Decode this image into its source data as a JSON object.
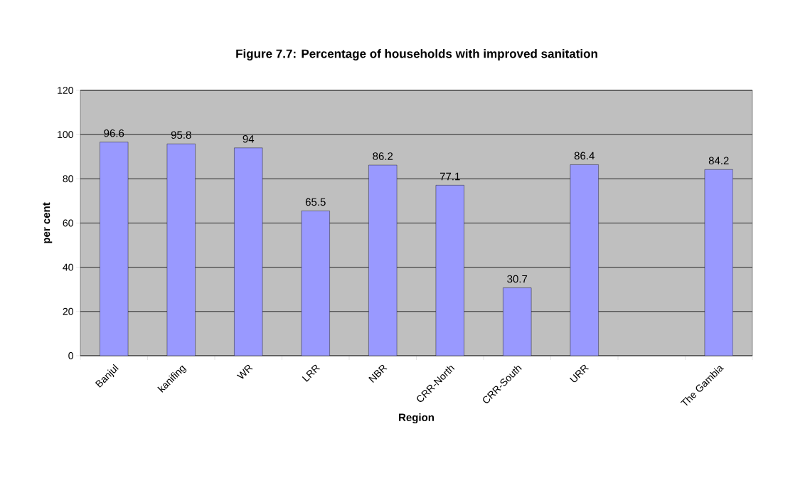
{
  "chart_data": {
    "type": "bar",
    "title": "Figure 7.7: Percentage of households with improved sanitation",
    "xlabel": "Region",
    "ylabel": "per cent",
    "categories": [
      "Banjul",
      "kanifing",
      "WR",
      "LRR",
      "NBR",
      "CRR-North",
      "CRR-South",
      "URR",
      null,
      "The Gambia"
    ],
    "values": [
      96.6,
      95.8,
      94,
      65.5,
      86.2,
      77.1,
      30.7,
      86.4,
      null,
      84.2
    ],
    "color": "#9999ff",
    "ylim": [
      0,
      120
    ],
    "yticks": [
      0,
      20,
      40,
      60,
      80,
      100,
      120
    ],
    "grid": "y",
    "data_labels": true
  }
}
